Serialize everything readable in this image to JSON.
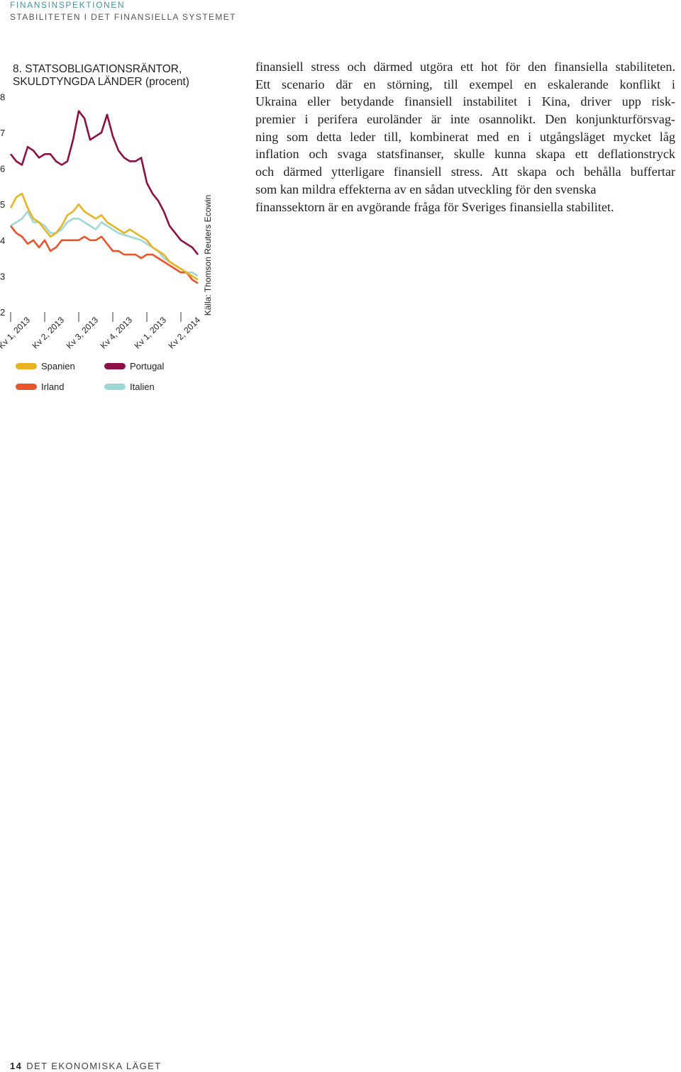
{
  "header": {
    "organization": "FINANSINSPEKTIONEN",
    "section": "STABILITETEN I DET FINANSIELLA SYSTEMET"
  },
  "chart_data": {
    "type": "line",
    "title": [
      "8. STATSOBLIGATIONSRÄNTOR,",
      "SKULDTYNGDA LÄNDER (procent)"
    ],
    "source": "Källa: Thomson Reuters Ecowin",
    "categories": [
      "Kv 1, 2013",
      null,
      null,
      null,
      null,
      null,
      "Kv 2, 2013",
      null,
      null,
      null,
      null,
      null,
      "Kv 3, 2013",
      null,
      null,
      null,
      null,
      null,
      "Kv 4, 2013",
      null,
      null,
      null,
      null,
      null,
      "Kv 1, 2013",
      null,
      null,
      null,
      null,
      null,
      "Kv 2, 2014",
      null,
      null,
      null
    ],
    "ylim": [
      2,
      8
    ],
    "yticks": [
      2,
      3,
      4,
      5,
      6,
      7,
      8
    ],
    "series": [
      {
        "name": "Spanien",
        "color": "#e8b320",
        "values": [
          4.9,
          5.2,
          5.3,
          4.9,
          4.6,
          4.5,
          4.3,
          4.1,
          4.2,
          4.4,
          4.7,
          4.8,
          5.0,
          4.8,
          4.7,
          4.6,
          4.7,
          4.5,
          4.4,
          4.3,
          4.2,
          4.3,
          4.2,
          4.1,
          4.0,
          3.8,
          3.7,
          3.6,
          3.4,
          3.3,
          3.2,
          3.1,
          3.0,
          2.9
        ]
      },
      {
        "name": "Portugal",
        "color": "#8c0f46",
        "values": [
          6.4,
          6.2,
          6.1,
          6.6,
          6.5,
          6.3,
          6.4,
          6.4,
          6.2,
          6.1,
          6.2,
          6.8,
          7.6,
          7.4,
          6.8,
          6.9,
          7.0,
          7.5,
          6.9,
          6.5,
          6.3,
          6.2,
          6.2,
          6.3,
          5.6,
          5.3,
          5.1,
          4.8,
          4.4,
          4.2,
          4.0,
          3.9,
          3.8,
          3.6
        ]
      },
      {
        "name": "Irland",
        "color": "#e8552a",
        "values": [
          4.4,
          4.2,
          4.1,
          3.9,
          4.0,
          3.8,
          4.0,
          3.7,
          3.8,
          4.0,
          4.0,
          4.0,
          4.0,
          4.1,
          4.0,
          4.0,
          4.1,
          3.9,
          3.7,
          3.7,
          3.6,
          3.6,
          3.6,
          3.5,
          3.6,
          3.6,
          3.5,
          3.4,
          3.3,
          3.2,
          3.1,
          3.1,
          2.9,
          2.8
        ]
      },
      {
        "name": "Italien",
        "color": "#9ed8d6",
        "values": [
          4.4,
          4.5,
          4.6,
          4.8,
          4.5,
          4.5,
          4.4,
          4.2,
          4.2,
          4.3,
          4.5,
          4.6,
          4.6,
          4.5,
          4.4,
          4.3,
          4.5,
          4.4,
          4.3,
          4.2,
          4.15,
          4.1,
          4.05,
          4.0,
          3.9,
          3.8,
          3.7,
          3.5,
          3.4,
          3.3,
          3.2,
          3.1,
          3.1,
          3.0
        ]
      }
    ]
  },
  "body": [
    "finansiell stress och därmed utgöra ett hot för den finansiella stabiliteten.",
    "Ett scenario där en störning, till exempel en eskalerande konflikt i",
    "Ukraina eller betydande finansiell instabilitet i Kina, driver upp risk-",
    "premier i perifera euroländer är inte osannolikt. Den konjunkturförsvag-",
    "ning som detta leder till, kombinerat med en i utgångsläget mycket låg",
    "inflation och svaga statsfinanser, skulle kunna skapa ett deflationstryck",
    "och därmed ytterligare finansiell stress. Att skapa och behålla buffertar",
    "som kan mildra effekterna av en sådan utveckling för den svenska",
    "finanssektorn är en avgörande fråga för Sveriges finansiella stabilitet."
  ],
  "footer": {
    "page": "14",
    "section": "DET EKONOMISKA LÄGET"
  }
}
